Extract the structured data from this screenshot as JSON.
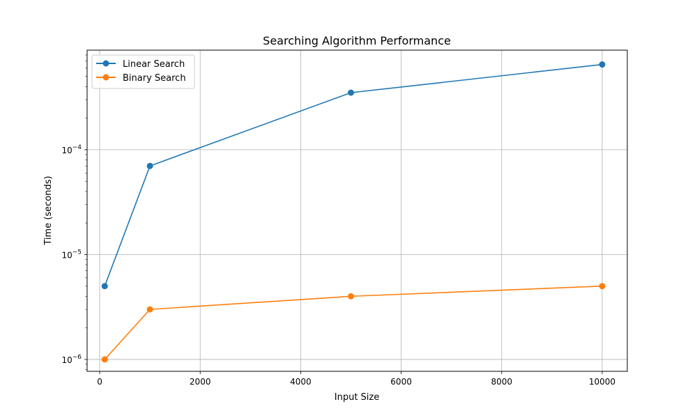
{
  "chart_data": {
    "type": "line",
    "title": "Searching Algorithm Performance",
    "xlabel": "Input Size",
    "ylabel": "Time (seconds)",
    "x": [
      100,
      1000,
      5000,
      10000
    ],
    "xlim": [
      -250,
      10500
    ],
    "xticks": [
      0,
      2000,
      4000,
      6000,
      8000,
      10000
    ],
    "xtick_labels": [
      "0",
      "2000",
      "4000",
      "6000",
      "8000",
      "10000"
    ],
    "yscale": "log",
    "ylim": [
      7.7e-07,
      0.00089
    ],
    "yticks": [
      1e-06,
      1e-05,
      0.0001
    ],
    "ytick_labels": [
      {
        "base": "10",
        "exp": "−6"
      },
      {
        "base": "10",
        "exp": "−5"
      },
      {
        "base": "10",
        "exp": "−4"
      }
    ],
    "grid": true,
    "legend_position": "top-left",
    "series": [
      {
        "name": "Linear Search",
        "color": "#1f77b4",
        "marker": "circle",
        "values": [
          5e-06,
          7e-05,
          0.00035,
          0.00065
        ]
      },
      {
        "name": "Binary Search",
        "color": "#ff7f0e",
        "marker": "circle",
        "values": [
          1e-06,
          3e-06,
          4e-06,
          5e-06
        ]
      }
    ]
  }
}
